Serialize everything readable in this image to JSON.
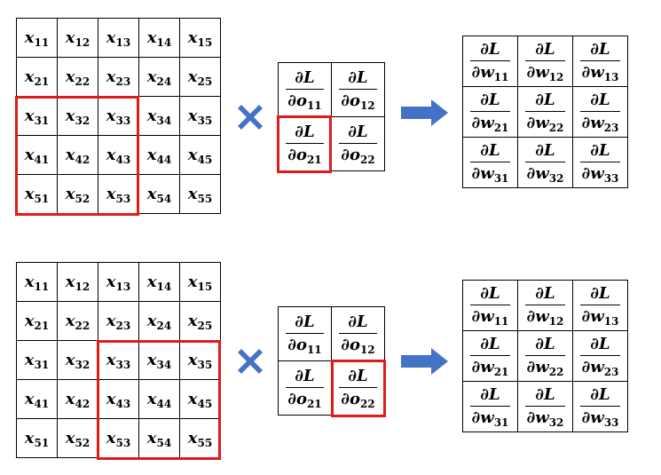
{
  "panels": [
    {
      "x_grid": [
        [
          [
            "x",
            "11"
          ],
          [
            "x",
            "12"
          ],
          [
            "x",
            "13"
          ],
          [
            "x",
            "14"
          ],
          [
            "x",
            "15"
          ]
        ],
        [
          [
            "x",
            "21"
          ],
          [
            "x",
            "22"
          ],
          [
            "x",
            "23"
          ],
          [
            "x",
            "24"
          ],
          [
            "x",
            "25"
          ]
        ],
        [
          [
            "x",
            "31"
          ],
          [
            "x",
            "32"
          ],
          [
            "x",
            "33"
          ],
          [
            "x",
            "34"
          ],
          [
            "x",
            "35"
          ]
        ],
        [
          [
            "x",
            "41"
          ],
          [
            "x",
            "42"
          ],
          [
            "x",
            "43"
          ],
          [
            "x",
            "44"
          ],
          [
            "x",
            "45"
          ]
        ],
        [
          [
            "x",
            "51"
          ],
          [
            "x",
            "52"
          ],
          [
            "x",
            "53"
          ],
          [
            "x",
            "54"
          ],
          [
            "x",
            "55"
          ]
        ]
      ],
      "o_grad": [
        [
          {
            "num": "∂L",
            "den": "∂o",
            "sub": "11"
          },
          {
            "num": "∂L",
            "den": "∂o",
            "sub": "12"
          }
        ],
        [
          {
            "num": "∂L",
            "den": "∂o",
            "sub": "21"
          },
          {
            "num": "∂L",
            "den": "∂o",
            "sub": "22"
          }
        ]
      ],
      "w_grad": [
        [
          {
            "num": "∂L",
            "den": "∂w",
            "sub": "11"
          },
          {
            "num": "∂L",
            "den": "∂w",
            "sub": "12"
          },
          {
            "num": "∂L",
            "den": "∂w",
            "sub": "13"
          }
        ],
        [
          {
            "num": "∂L",
            "den": "∂w",
            "sub": "21"
          },
          {
            "num": "∂L",
            "den": "∂w",
            "sub": "22"
          },
          {
            "num": "∂L",
            "den": "∂w",
            "sub": "23"
          }
        ],
        [
          {
            "num": "∂L",
            "den": "∂w",
            "sub": "31"
          },
          {
            "num": "∂L",
            "den": "∂w",
            "sub": "32"
          },
          {
            "num": "∂L",
            "den": "∂w",
            "sub": "33"
          }
        ]
      ]
    },
    {
      "x_grid": [
        [
          [
            "x",
            "11"
          ],
          [
            "x",
            "12"
          ],
          [
            "x",
            "13"
          ],
          [
            "x",
            "14"
          ],
          [
            "x",
            "15"
          ]
        ],
        [
          [
            "x",
            "21"
          ],
          [
            "x",
            "22"
          ],
          [
            "x",
            "23"
          ],
          [
            "x",
            "24"
          ],
          [
            "x",
            "25"
          ]
        ],
        [
          [
            "x",
            "31"
          ],
          [
            "x",
            "32"
          ],
          [
            "x",
            "33"
          ],
          [
            "x",
            "34"
          ],
          [
            "x",
            "35"
          ]
        ],
        [
          [
            "x",
            "41"
          ],
          [
            "x",
            "42"
          ],
          [
            "x",
            "43"
          ],
          [
            "x",
            "44"
          ],
          [
            "x",
            "45"
          ]
        ],
        [
          [
            "x",
            "51"
          ],
          [
            "x",
            "52"
          ],
          [
            "x",
            "53"
          ],
          [
            "x",
            "54"
          ],
          [
            "x",
            "55"
          ]
        ]
      ],
      "o_grad": [
        [
          {
            "num": "∂L",
            "den": "∂o",
            "sub": "11"
          },
          {
            "num": "∂L",
            "den": "∂o",
            "sub": "12"
          }
        ],
        [
          {
            "num": "∂L",
            "den": "∂o",
            "sub": "21"
          },
          {
            "num": "∂L",
            "den": "∂o",
            "sub": "22"
          }
        ]
      ],
      "w_grad": [
        [
          {
            "num": "∂L",
            "den": "∂w",
            "sub": "11"
          },
          {
            "num": "∂L",
            "den": "∂w",
            "sub": "12"
          },
          {
            "num": "∂L",
            "den": "∂w",
            "sub": "13"
          }
        ],
        [
          {
            "num": "∂L",
            "den": "∂w",
            "sub": "21"
          },
          {
            "num": "∂L",
            "den": "∂w",
            "sub": "22"
          },
          {
            "num": "∂L",
            "den": "∂w",
            "sub": "23"
          }
        ],
        [
          {
            "num": "∂L",
            "den": "∂w",
            "sub": "31"
          },
          {
            "num": "∂L",
            "den": "∂w",
            "sub": "32"
          },
          {
            "num": "∂L",
            "den": "∂w",
            "sub": "33"
          }
        ]
      ]
    }
  ],
  "colors": {
    "highlight": "#e11a1a",
    "icon": "#4472c4"
  },
  "icons": [
    "multiply-icon",
    "right-arrow-icon"
  ]
}
